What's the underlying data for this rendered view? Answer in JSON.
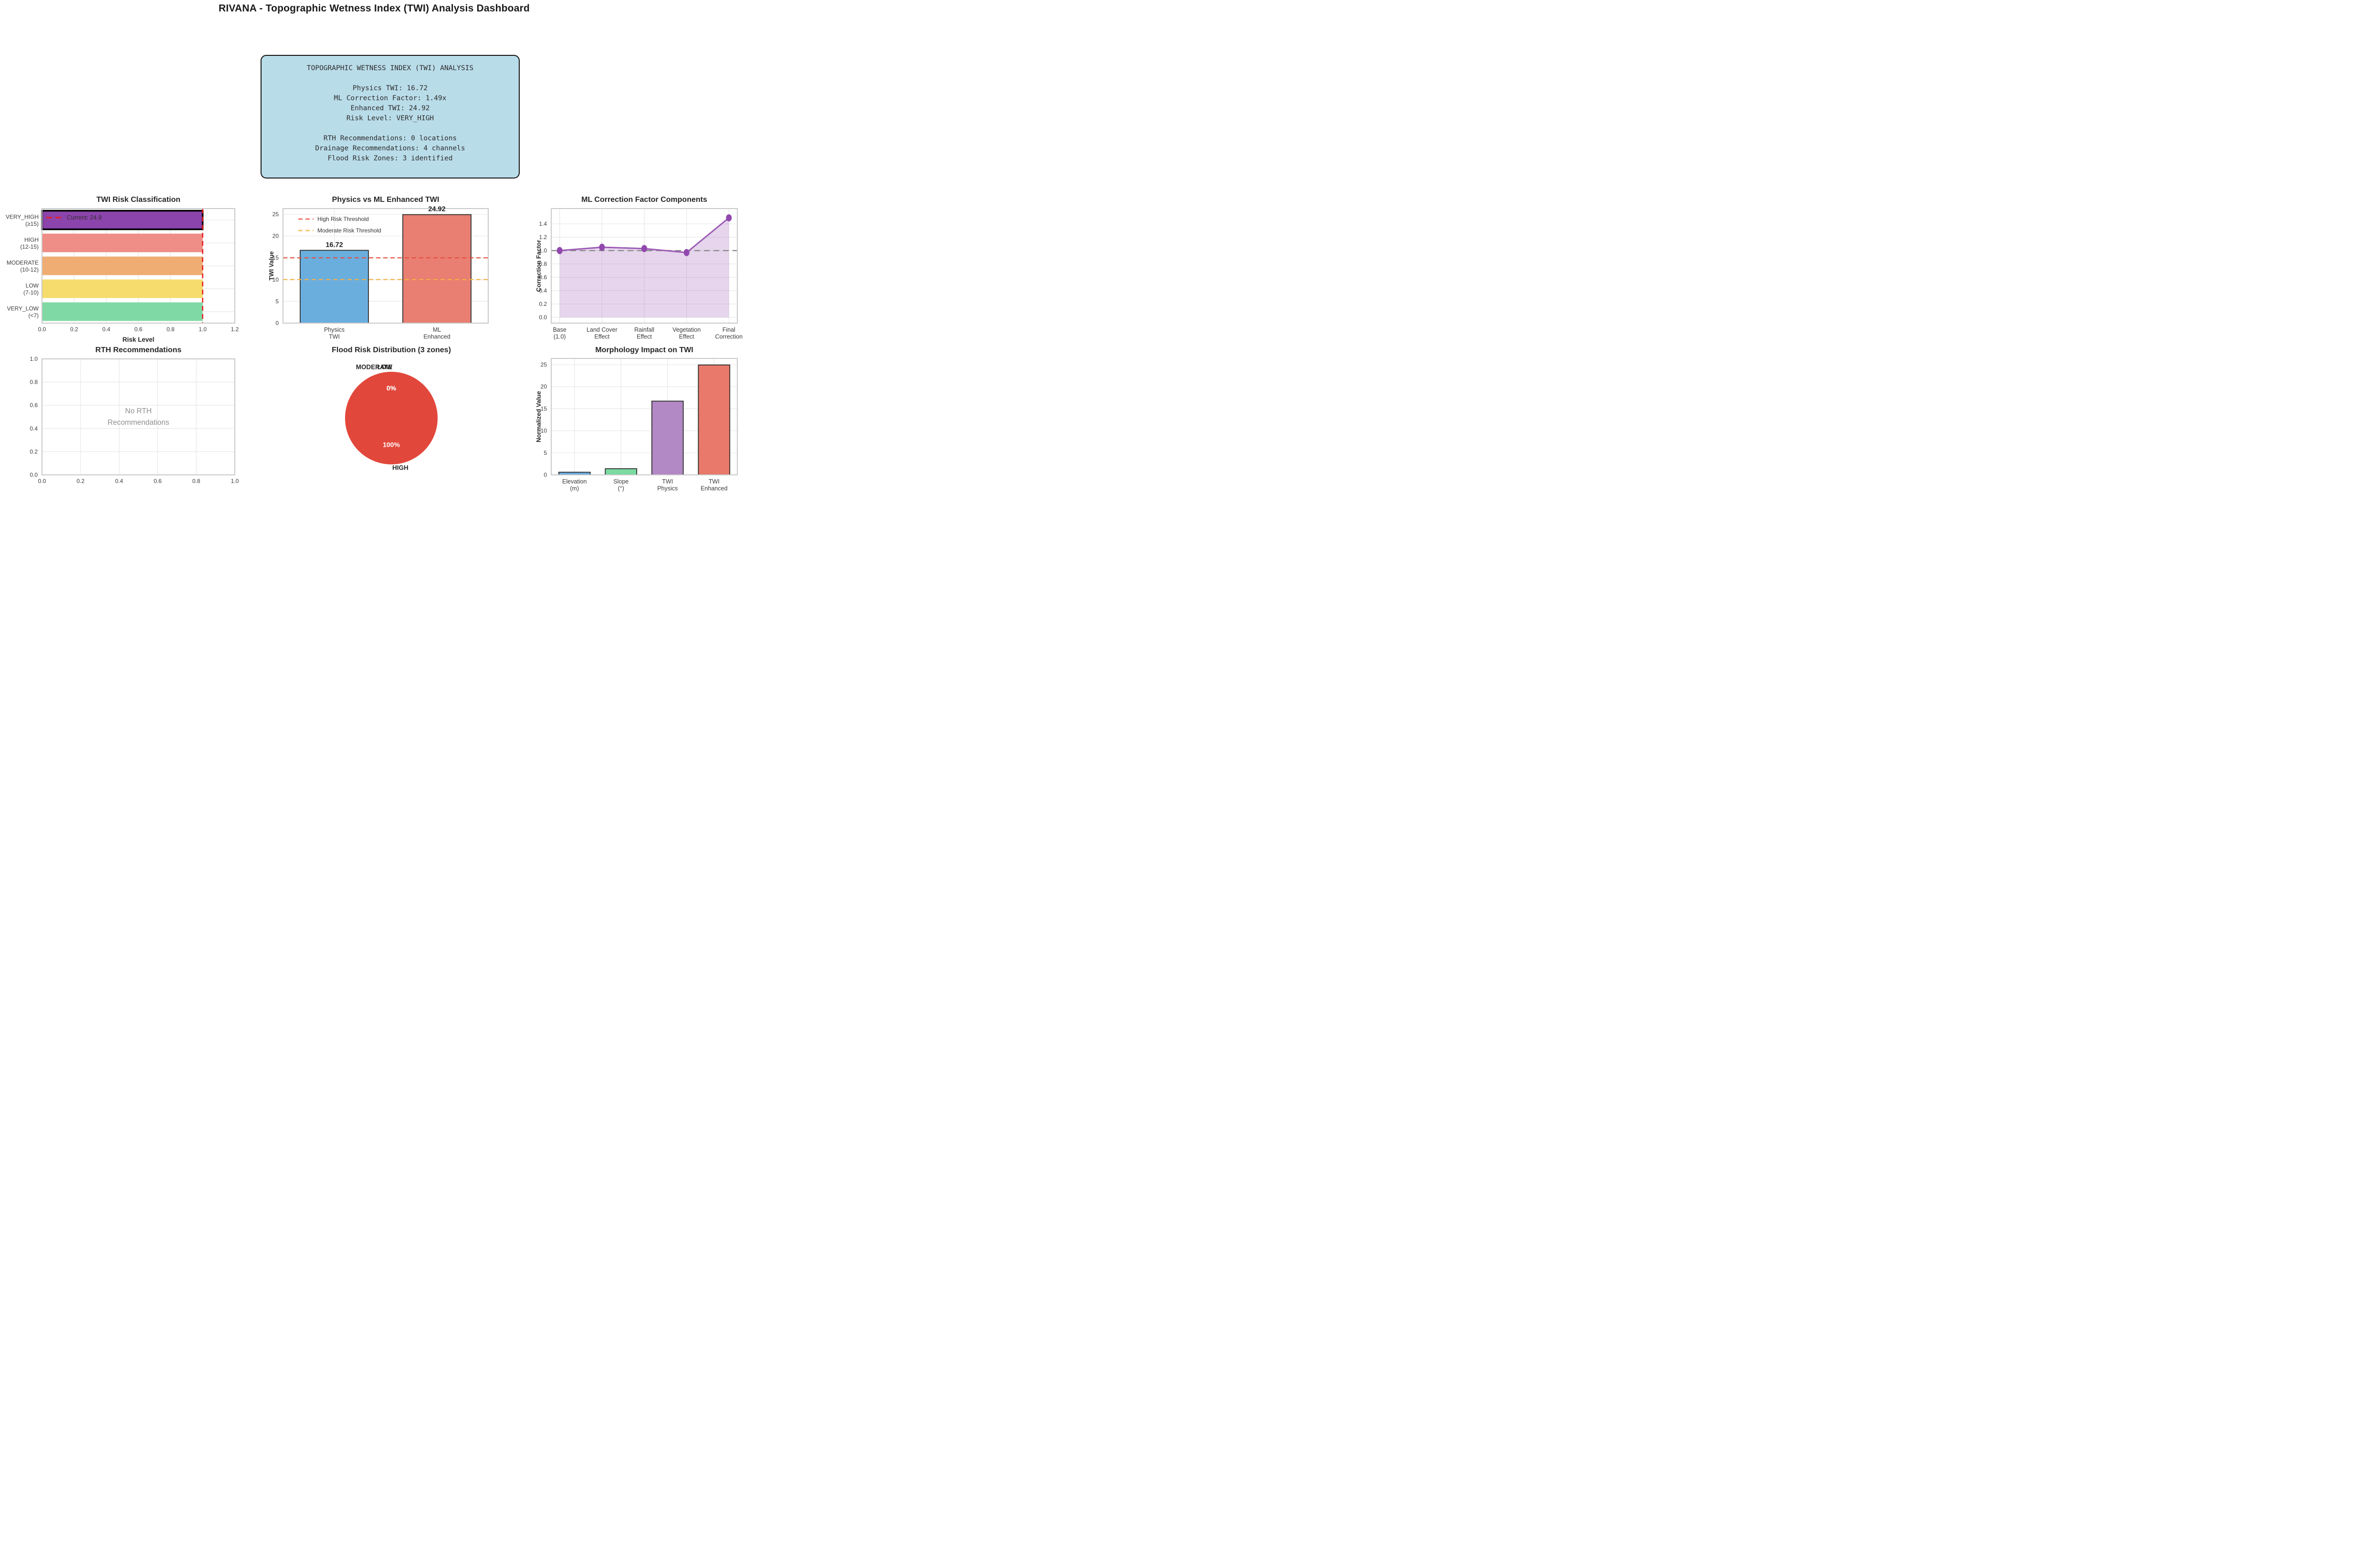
{
  "page_title": "RIVANA - Topographic Wetness Index (TWI) Analysis Dashboard",
  "info_box": {
    "bg_color": "#b9dce9",
    "lines": [
      "TOPOGRAPHIC WETNESS INDEX (TWI) ANALYSIS",
      "",
      "Physics TWI: 16.72",
      "ML Correction Factor: 1.49x",
      "Enhanced TWI: 24.92",
      "Risk Level: VERY_HIGH",
      "",
      "RTH Recommendations: 0 locations",
      "Drainage Recommendations: 4 channels",
      "Flood Risk Zones: 3 identified"
    ]
  },
  "chart_data": [
    {
      "id": "risk-classification",
      "type": "hbar",
      "title": "TWI Risk Classification",
      "xlabel": "Risk Level",
      "categories": [
        [
          "VERY_HIGH",
          "(≥15)"
        ],
        [
          "HIGH",
          "(12-15)"
        ],
        [
          "MODERATE",
          "(10-12)"
        ],
        [
          "LOW",
          "(7-10)"
        ],
        [
          "VERY_LOW",
          "(<7)"
        ]
      ],
      "values": [
        1.0,
        1.0,
        1.0,
        1.0,
        1.0
      ],
      "colors": [
        "#8c44ad",
        "#ee8e86",
        "#efad73",
        "#f5dc6c",
        "#7fd9a4"
      ],
      "highlight_index": 0,
      "xlim": [
        0,
        1.2
      ],
      "xticks": [
        "0.0",
        "0.2",
        "0.4",
        "0.6",
        "0.8",
        "1.0",
        "1.2"
      ],
      "vline": {
        "x": 1.0,
        "color": "#e81e1e",
        "label": "Current: 24.9"
      },
      "grid": true
    },
    {
      "id": "physics-vs-ml",
      "type": "bar",
      "title": "Physics vs ML Enhanced TWI",
      "ylabel": "TWI Value",
      "categories": [
        [
          "Physics",
          "TWI"
        ],
        [
          "ML",
          "Enhanced"
        ]
      ],
      "values": [
        16.72,
        24.92
      ],
      "value_labels": [
        "16.72",
        "24.92"
      ],
      "colors": [
        "#6aaede",
        "#e87f72"
      ],
      "ylim": [
        0,
        26.31
      ],
      "yticks": [
        "0",
        "5",
        "10",
        "15",
        "20",
        "25"
      ],
      "hlines": [
        {
          "y": 15,
          "color": "#e74c3c",
          "label": "High Risk Threshold"
        },
        {
          "y": 10,
          "color": "#f5b041",
          "label": "Moderate Risk Threshold"
        }
      ],
      "grid": true
    },
    {
      "id": "ml-correction",
      "type": "line",
      "title": "ML Correction Factor Components",
      "ylabel": "Correction Factor",
      "categories": [
        [
          "Base",
          "(1.0)"
        ],
        [
          "Land Cover",
          "Effect"
        ],
        [
          "Rainfall",
          "Effect"
        ],
        [
          "Vegetation",
          "Effect"
        ],
        [
          "Final",
          "Correction"
        ]
      ],
      "values": [
        1.0,
        1.05,
        1.03,
        0.97,
        1.49
      ],
      "line_color": "#9d5bb5",
      "marker_color": "#9148ae",
      "fill_color": "#9b59b6",
      "fill_opacity": 0.25,
      "ylim": [
        -0.086,
        1.629
      ],
      "yticks": [
        "0.0",
        "0.2",
        "0.4",
        "0.6",
        "0.8",
        "1.0",
        "1.2",
        "1.4"
      ],
      "hline": {
        "y": 1.0,
        "color": "#8a8a8a"
      },
      "grid": true
    },
    {
      "id": "rth-recommendations",
      "type": "empty",
      "title": "RTH Recommendations",
      "xlim": [
        0,
        1
      ],
      "ylim": [
        0,
        1
      ],
      "xticks": [
        "0.0",
        "0.2",
        "0.4",
        "0.6",
        "0.8",
        "1.0"
      ],
      "yticks": [
        "0.0",
        "0.2",
        "0.4",
        "0.6",
        "0.8",
        "1.0"
      ],
      "message": [
        "No RTH",
        "Recommendations"
      ],
      "message_color": "#8f8f8f",
      "grid": true
    },
    {
      "id": "flood-risk",
      "type": "pie",
      "title": "Flood Risk Distribution (3 zones)",
      "slices": [
        {
          "label": "HIGH",
          "pct": "100%",
          "value": 100,
          "color": "#e2473b"
        },
        {
          "label": "MODERATE",
          "pct": "0%",
          "value": 0,
          "color": "#e2473b"
        },
        {
          "label": "LOW",
          "pct": "0%",
          "value": 0,
          "color": "#e2473b"
        }
      ],
      "label_color": "#262626",
      "pct_color": "#ffffff"
    },
    {
      "id": "morphology",
      "type": "bar",
      "title": "Morphology Impact on TWI",
      "ylabel": "Normalized Value",
      "categories": [
        [
          "Elevation",
          "(m)"
        ],
        [
          "Slope",
          "(°)"
        ],
        [
          "TWI",
          "Physics"
        ],
        [
          "TWI",
          "Enhanced"
        ]
      ],
      "values": [
        0.6,
        1.4,
        16.72,
        24.92
      ],
      "colors": [
        "#6aaede",
        "#7bd9a2",
        "#b288c5",
        "#e8796b"
      ],
      "ylim": [
        0,
        26.4
      ],
      "yticks": [
        "0",
        "5",
        "10",
        "15",
        "20",
        "25"
      ],
      "grid": true
    }
  ]
}
